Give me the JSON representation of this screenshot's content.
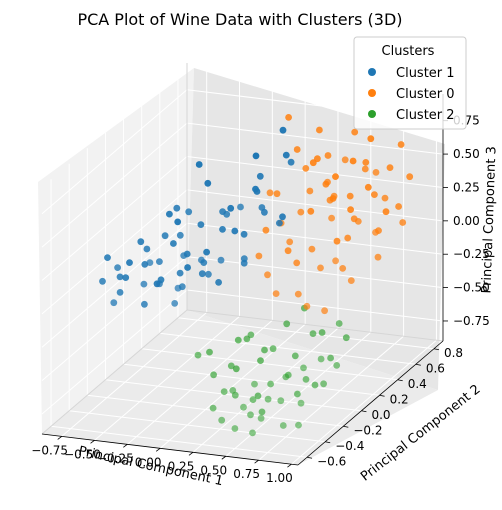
{
  "chart_data": {
    "type": "scatter",
    "projection": "3d",
    "title": "PCA Plot of Wine Data with Clusters (3D)",
    "xlabel": "Principal Component 1",
    "ylabel": "Principal Component 2",
    "zlabel": "Principal Component 3",
    "xlim": [
      -0.9,
      1.05
    ],
    "ylim": [
      -0.7,
      0.9
    ],
    "zlim": [
      -0.9,
      0.95
    ],
    "xticks": [
      "−0.75",
      "−0.50",
      "−0.25",
      "0.00",
      "0.25",
      "0.50",
      "0.75",
      "1.00"
    ],
    "xtick_values": [
      -0.75,
      -0.5,
      -0.25,
      0.0,
      0.25,
      0.5,
      0.75,
      1.0
    ],
    "yticks": [
      "−0.6",
      "−0.4",
      "−0.2",
      "0.0",
      "0.2",
      "0.4",
      "0.6",
      "0.8"
    ],
    "ytick_values": [
      -0.6,
      -0.4,
      -0.2,
      0.0,
      0.2,
      0.4,
      0.6,
      0.8
    ],
    "zticks": [
      "−0.75",
      "−0.50",
      "−0.25",
      "0.00",
      "0.25",
      "0.50",
      "0.75"
    ],
    "ztick_values": [
      -0.75,
      -0.5,
      -0.25,
      0.0,
      0.25,
      0.5,
      0.75
    ],
    "grid": true,
    "legend": {
      "title": "Clusters",
      "placement": "top-right"
    },
    "series": [
      {
        "name": "Cluster 1",
        "color": "#1f77b4",
        "points": [
          [
            -0.85,
            -0.05,
            0.05
          ],
          [
            -0.78,
            0.05,
            -0.15
          ],
          [
            -0.72,
            -0.1,
            -0.05
          ],
          [
            -0.7,
            0.1,
            0.1
          ],
          [
            -0.65,
            -0.2,
            -0.1
          ],
          [
            -0.6,
            0.0,
            0.0
          ],
          [
            -0.58,
            0.15,
            -0.2
          ],
          [
            -0.55,
            -0.05,
            0.15
          ],
          [
            -0.52,
            0.2,
            0.05
          ],
          [
            -0.5,
            -0.15,
            -0.2
          ],
          [
            -0.48,
            0.05,
            0.2
          ],
          [
            -0.45,
            0.25,
            -0.05
          ],
          [
            -0.42,
            -0.1,
            0.1
          ],
          [
            -0.4,
            0.1,
            -0.1
          ],
          [
            -0.38,
            0.3,
            0.15
          ],
          [
            -0.35,
            -0.2,
            0.0
          ],
          [
            -0.33,
            0.0,
            0.25
          ],
          [
            -0.3,
            0.2,
            -0.15
          ],
          [
            -0.28,
            -0.05,
            -0.1
          ],
          [
            -0.25,
            0.35,
            0.1
          ],
          [
            -0.22,
            0.1,
            0.0
          ],
          [
            -0.2,
            -0.15,
            0.2
          ],
          [
            -0.18,
            0.25,
            0.3
          ],
          [
            -0.15,
            0.05,
            -0.05
          ],
          [
            -0.12,
            0.4,
            0.05
          ],
          [
            -0.1,
            -0.1,
            0.15
          ],
          [
            -0.08,
            0.15,
            0.35
          ],
          [
            -0.05,
            0.3,
            -0.1
          ],
          [
            -0.02,
            0.0,
            0.1
          ],
          [
            0.0,
            0.45,
            0.2
          ],
          [
            0.02,
            0.2,
            0.0
          ],
          [
            0.05,
            0.35,
            0.3
          ],
          [
            0.08,
            0.5,
            0.1
          ],
          [
            -0.62,
            0.3,
            0.2
          ],
          [
            -0.44,
            0.45,
            -0.15
          ],
          [
            -0.26,
            0.5,
            0.0
          ],
          [
            -0.36,
            0.6,
            0.1
          ],
          [
            -0.16,
            0.6,
            0.25
          ],
          [
            -0.55,
            0.4,
            -0.25
          ],
          [
            -0.68,
            0.25,
            -0.3
          ],
          [
            -0.4,
            -0.3,
            0.05
          ],
          [
            -0.2,
            -0.25,
            -0.1
          ],
          [
            -0.3,
            0.05,
            0.4
          ],
          [
            -0.1,
            0.55,
            0.4
          ],
          [
            0.0,
            0.65,
            0.05
          ],
          [
            -0.5,
            0.55,
            0.3
          ],
          [
            -0.75,
            -0.25,
            0.0
          ],
          [
            -0.6,
            -0.3,
            0.15
          ],
          [
            -0.46,
            0.15,
            0.35
          ],
          [
            -0.32,
            -0.35,
            0.25
          ],
          [
            -0.14,
            -0.3,
            0.05
          ],
          [
            0.06,
            0.1,
            0.45
          ],
          [
            -0.24,
            0.7,
            0.2
          ],
          [
            -0.04,
            0.75,
            0.45
          ],
          [
            -0.66,
            0.45,
            0.05
          ],
          [
            -0.82,
            0.15,
            -0.1
          ],
          [
            -0.56,
            -0.4,
            -0.05
          ],
          [
            0.1,
            0.6,
            0.5
          ],
          [
            -0.1,
            0.8,
            0.6
          ],
          [
            -0.28,
            0.35,
            -0.3
          ],
          [
            -0.6,
            0.6,
            0.4
          ],
          [
            -0.34,
            0.85,
            0.35
          ]
        ]
      },
      {
        "name": "Cluster 0",
        "color": "#ff7f0e",
        "points": [
          [
            0.15,
            0.5,
            0.9
          ],
          [
            0.25,
            0.45,
            0.7
          ],
          [
            0.3,
            0.6,
            0.55
          ],
          [
            0.2,
            0.3,
            0.45
          ],
          [
            0.35,
            0.4,
            0.6
          ],
          [
            0.4,
            0.55,
            0.4
          ],
          [
            0.45,
            0.3,
            0.5
          ],
          [
            0.5,
            0.45,
            0.35
          ],
          [
            0.55,
            0.6,
            0.3
          ],
          [
            0.6,
            0.35,
            0.45
          ],
          [
            0.65,
            0.5,
            0.2
          ],
          [
            0.7,
            0.65,
            0.3
          ],
          [
            0.75,
            0.4,
            0.25
          ],
          [
            0.8,
            0.55,
            0.1
          ],
          [
            0.85,
            0.7,
            0.2
          ],
          [
            0.3,
            0.2,
            0.3
          ],
          [
            0.4,
            0.15,
            0.2
          ],
          [
            0.5,
            0.25,
            0.1
          ],
          [
            0.6,
            0.2,
            0.0
          ],
          [
            0.7,
            0.3,
            -0.05
          ],
          [
            0.8,
            0.25,
            -0.1
          ],
          [
            0.9,
            0.4,
            0.0
          ],
          [
            0.35,
            0.7,
            0.2
          ],
          [
            0.45,
            0.75,
            0.1
          ],
          [
            0.55,
            0.8,
            0.25
          ],
          [
            0.65,
            0.85,
            0.05
          ],
          [
            0.25,
            0.6,
            0.15
          ],
          [
            0.2,
            0.1,
            0.1
          ],
          [
            0.3,
            0.05,
            0.0
          ],
          [
            0.4,
            0.0,
            -0.1
          ],
          [
            0.5,
            0.1,
            -0.15
          ],
          [
            0.6,
            0.05,
            -0.2
          ],
          [
            0.7,
            0.1,
            -0.25
          ],
          [
            0.75,
            0.75,
            0.45
          ],
          [
            0.85,
            0.55,
            0.35
          ],
          [
            0.95,
            0.6,
            0.15
          ],
          [
            0.45,
            0.5,
            0.65
          ],
          [
            0.55,
            0.35,
            0.55
          ],
          [
            0.65,
            0.25,
            0.35
          ],
          [
            0.35,
            0.3,
            -0.05
          ],
          [
            0.25,
            0.35,
            0.0
          ],
          [
            0.15,
            0.25,
            0.2
          ],
          [
            0.45,
            0.6,
            -0.05
          ],
          [
            0.8,
            0.8,
            0.6
          ],
          [
            0.9,
            0.75,
            0.4
          ],
          [
            0.6,
            0.7,
            0.5
          ],
          [
            0.7,
            0.55,
            0.55
          ],
          [
            0.4,
            0.85,
            0.4
          ],
          [
            0.5,
            0.9,
            0.55
          ],
          [
            0.3,
            0.8,
            0.3
          ],
          [
            0.2,
            0.7,
            0.45
          ],
          [
            0.85,
            0.45,
            0.6
          ],
          [
            0.95,
            0.3,
            0.25
          ],
          [
            0.75,
            0.15,
            0.1
          ],
          [
            0.65,
            0.4,
            0.7
          ],
          [
            0.55,
            0.65,
            0.75
          ],
          [
            0.35,
            0.55,
            0.8
          ],
          [
            0.45,
            0.2,
            0.4
          ],
          [
            0.25,
            0.15,
            0.55
          ],
          [
            0.6,
            0.5,
            0.05
          ]
        ]
      },
      {
        "name": "Cluster 2",
        "color": "#2ca02c",
        "points": [
          [
            0.1,
            -0.3,
            -0.4
          ],
          [
            0.2,
            -0.4,
            -0.5
          ],
          [
            0.3,
            -0.35,
            -0.45
          ],
          [
            0.35,
            -0.5,
            -0.55
          ],
          [
            0.4,
            -0.45,
            -0.6
          ],
          [
            0.45,
            -0.55,
            -0.5
          ],
          [
            0.5,
            -0.4,
            -0.65
          ],
          [
            0.55,
            -0.5,
            -0.7
          ],
          [
            0.6,
            -0.35,
            -0.55
          ],
          [
            0.65,
            -0.45,
            -0.6
          ],
          [
            0.7,
            -0.3,
            -0.5
          ],
          [
            0.75,
            -0.4,
            -0.45
          ],
          [
            0.8,
            -0.25,
            -0.55
          ],
          [
            0.85,
            -0.35,
            -0.4
          ],
          [
            0.9,
            -0.2,
            -0.6
          ],
          [
            0.95,
            -0.3,
            -0.35
          ],
          [
            0.25,
            -0.2,
            -0.35
          ],
          [
            0.35,
            -0.25,
            -0.3
          ],
          [
            0.45,
            -0.2,
            -0.4
          ],
          [
            0.55,
            -0.25,
            -0.35
          ],
          [
            0.65,
            -0.15,
            -0.45
          ],
          [
            0.75,
            -0.1,
            -0.3
          ],
          [
            0.85,
            -0.05,
            -0.5
          ],
          [
            0.5,
            -0.6,
            -0.75
          ],
          [
            0.6,
            -0.55,
            -0.8
          ],
          [
            0.7,
            -0.6,
            -0.65
          ],
          [
            0.4,
            -0.6,
            -0.7
          ],
          [
            0.3,
            -0.55,
            -0.65
          ],
          [
            0.8,
            -0.5,
            -0.75
          ],
          [
            0.9,
            -0.45,
            -0.6
          ],
          [
            0.95,
            -0.1,
            -0.2
          ],
          [
            1.0,
            -0.2,
            -0.45
          ],
          [
            0.55,
            -0.1,
            -0.25
          ],
          [
            0.65,
            -0.05,
            -0.15
          ],
          [
            0.75,
            0.0,
            -0.35
          ],
          [
            0.45,
            -0.35,
            -0.2
          ],
          [
            0.35,
            -0.1,
            -0.55
          ],
          [
            0.2,
            -0.15,
            -0.6
          ],
          [
            0.15,
            -0.5,
            -0.3
          ],
          [
            0.85,
            -0.6,
            -0.5
          ],
          [
            0.95,
            -0.55,
            -0.7
          ],
          [
            0.6,
            -0.65,
            -0.55
          ],
          [
            0.7,
            -0.2,
            -0.7
          ],
          [
            0.5,
            -0.3,
            -0.8
          ],
          [
            0.8,
            -0.15,
            -0.65
          ],
          [
            0.9,
            0.05,
            -0.4
          ],
          [
            0.4,
            -0.2,
            -0.75
          ],
          [
            0.65,
            -0.6,
            -0.4
          ]
        ]
      }
    ]
  }
}
